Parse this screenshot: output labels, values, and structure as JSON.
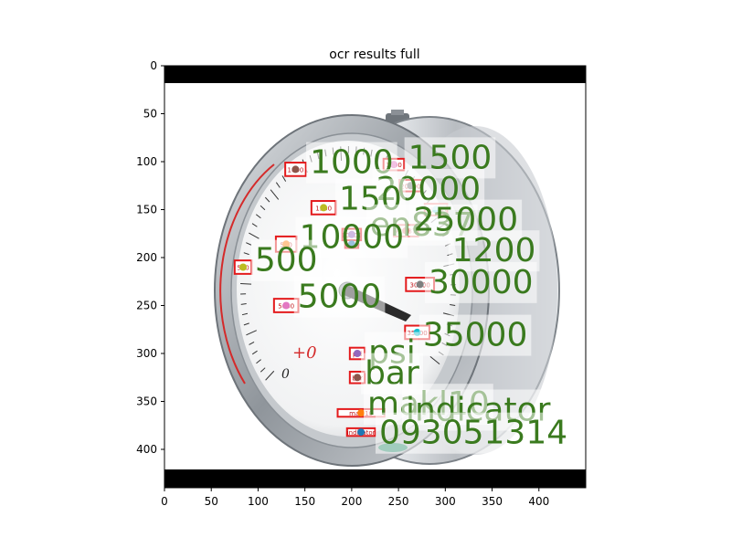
{
  "chart_data": {
    "type": "scatter",
    "title": "ocr results full",
    "xlabel": "",
    "ylabel": "",
    "xlim": [
      0,
      450
    ],
    "ylim": [
      440,
      0
    ],
    "y_inverted": true,
    "x_ticks": [
      0,
      50,
      100,
      150,
      200,
      250,
      300,
      350,
      400
    ],
    "y_ticks": [
      0,
      50,
      100,
      150,
      200,
      250,
      300,
      350,
      400
    ],
    "grid": false,
    "image_content": "pressure gauge with OCR detection boxes",
    "detections": [
      {
        "text": "1000",
        "x": 140,
        "y": 108,
        "w": 22,
        "h": 14,
        "color": "#8c564b"
      },
      {
        "text": "1500",
        "x": 245,
        "y": 103,
        "w": 22,
        "h": 12,
        "color": "#e377c2"
      },
      {
        "text": "20000",
        "x": 263,
        "y": 125,
        "w": 24,
        "h": 12,
        "color": "#7f7f7f"
      },
      {
        "text": "1500",
        "x": 170,
        "y": 148,
        "w": 26,
        "h": 14,
        "color": "#bcbd22"
      },
      {
        "text": "25000",
        "x": 290,
        "y": 150,
        "w": 24,
        "h": 12,
        "color": "#17becf"
      },
      {
        "text": "10000",
        "x": 200,
        "y": 176,
        "w": 20,
        "h": 12,
        "color": "#9467bd"
      },
      {
        "text": "en837",
        "x": 258,
        "y": 172,
        "w": 26,
        "h": 12,
        "color": "#d62728"
      },
      {
        "text": "1200",
        "x": 200,
        "y": 186,
        "w": 14,
        "h": 8,
        "color": "#1f77b4"
      },
      {
        "text": "500",
        "x": 130,
        "y": 186,
        "w": 22,
        "h": 16,
        "color": "#ff7f0e"
      },
      {
        "text": "30000",
        "x": 273,
        "y": 228,
        "w": 30,
        "h": 14,
        "color": "#7f7f7f"
      },
      {
        "text": "500",
        "x": 84,
        "y": 210,
        "w": 18,
        "h": 14,
        "color": "#bcbd22"
      },
      {
        "text": "5000",
        "x": 130,
        "y": 250,
        "w": 26,
        "h": 14,
        "color": "#e377c2"
      },
      {
        "text": "35000",
        "x": 270,
        "y": 278,
        "w": 26,
        "h": 14,
        "color": "#17becf"
      },
      {
        "text": "psi",
        "x": 206,
        "y": 300,
        "w": 16,
        "h": 12,
        "color": "#9467bd"
      },
      {
        "text": "bar",
        "x": 206,
        "y": 325,
        "w": 16,
        "h": 12,
        "color": "#8c564b"
      },
      {
        "text": "makl10",
        "x": 210,
        "y": 362,
        "w": 50,
        "h": 8,
        "color": "#ff7f0e"
      },
      {
        "text": "indicator",
        "x": 210,
        "y": 382,
        "w": 30,
        "h": 8,
        "color": "#1f77b4"
      }
    ],
    "labels": [
      {
        "text": "1000",
        "x": 200,
        "y": 100,
        "size": 36
      },
      {
        "text": "1500",
        "x": 305,
        "y": 95,
        "size": 36
      },
      {
        "text": "20000",
        "x": 282,
        "y": 128,
        "size": 36
      },
      {
        "text": "150",
        "x": 220,
        "y": 138,
        "size": 36
      },
      {
        "text": "en837",
        "x": 275,
        "y": 165,
        "size": 36
      },
      {
        "text": "25000",
        "x": 322,
        "y": 160,
        "size": 36
      },
      {
        "text": "10000",
        "x": 200,
        "y": 178,
        "size": 36
      },
      {
        "text": "1200",
        "x": 352,
        "y": 192,
        "size": 36
      },
      {
        "text": "500",
        "x": 130,
        "y": 202,
        "size": 36
      },
      {
        "text": "30000",
        "x": 338,
        "y": 225,
        "size": 36
      },
      {
        "text": "5000",
        "x": 187,
        "y": 240,
        "size": 36
      },
      {
        "text": "35000",
        "x": 332,
        "y": 280,
        "size": 36
      },
      {
        "text": "psi",
        "x": 243,
        "y": 298,
        "size": 36
      },
      {
        "text": "bar",
        "x": 243,
        "y": 320,
        "size": 36
      },
      {
        "text": "makl10",
        "x": 282,
        "y": 352,
        "size": 36
      },
      {
        "text": "indicator",
        "x": 335,
        "y": 358,
        "size": 36
      },
      {
        "text": "093051314",
        "x": 330,
        "y": 382,
        "size": 36
      }
    ]
  }
}
